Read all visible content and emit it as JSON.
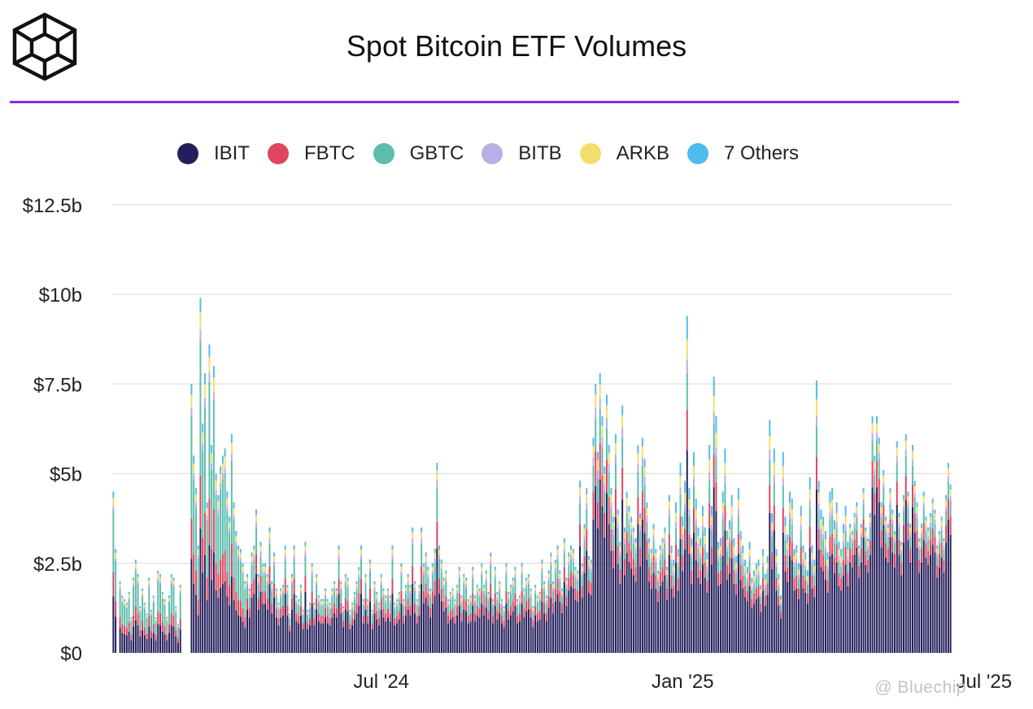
{
  "header": {
    "title": "Spot Bitcoin ETF Volumes",
    "logo_icon": "hexagon-cube-logo-icon",
    "accent_color": "#8a2be2"
  },
  "watermark": {
    "text": "@ Bluechip"
  },
  "chart_data": {
    "type": "bar",
    "stacked": true,
    "title": "Spot Bitcoin ETF Volumes",
    "xlabel": "",
    "ylabel": "",
    "ylim": [
      0,
      12.5
    ],
    "y_unit": "billions USD",
    "y_ticks": [
      0,
      2.5,
      5,
      7.5,
      10,
      12.5
    ],
    "y_tick_labels": [
      "$0",
      "$2.5b",
      "$5b",
      "$7.5b",
      "$10b",
      "$12.5b"
    ],
    "x_tick_labels": [
      "Jul '24",
      "Jan '25",
      "Jul '25"
    ],
    "x_tick_indices": [
      120,
      255,
      390
    ],
    "grid": true,
    "legend_position": "top-center",
    "series_meta": [
      {
        "name": "IBIT",
        "color": "#241f5c"
      },
      {
        "name": "FBTC",
        "color": "#e0445e"
      },
      {
        "name": "GBTC",
        "color": "#5ebdad"
      },
      {
        "name": "BITB",
        "color": "#b9aee6"
      },
      {
        "name": "ARKB",
        "color": "#f4dd6b"
      },
      {
        "name": "7 Others",
        "color": "#4fbcee"
      }
    ],
    "totals": [
      4.5,
      2.9,
      0.0,
      2.0,
      1.6,
      1.5,
      1.4,
      1.7,
      1.0,
      2.1,
      2.6,
      2.2,
      1.3,
      1.8,
      1.4,
      1.1,
      2.1,
      1.2,
      1.6,
      1.0,
      2.3,
      2.2,
      1.7,
      1.5,
      1.0,
      1.6,
      2.2,
      2.1,
      1.3,
      0.8,
      1.9,
      0.0,
      0.0,
      0.0,
      0.0,
      7.5,
      5.5,
      4.6,
      3.0,
      9.9,
      6.4,
      7.8,
      4.2,
      8.6,
      5.8,
      8.0,
      5.0,
      4.4,
      5.2,
      5.5,
      5.7,
      4.5,
      3.8,
      6.1,
      4.2,
      3.4,
      3.0,
      2.9,
      2.5,
      2.0,
      2.2,
      1.8,
      2.8,
      3.0,
      4.0,
      2.2,
      3.1,
      2.5,
      2.5,
      2.2,
      3.5,
      2.0,
      2.8,
      1.8,
      1.4,
      1.8,
      1.9,
      3.0,
      1.9,
      1.1,
      2.2,
      3.0,
      1.6,
      1.5,
      1.9,
      1.2,
      3.1,
      1.2,
      1.4,
      2.5,
      1.4,
      2.2,
      1.6,
      1.5,
      1.5,
      1.8,
      1.5,
      1.4,
      1.8,
      2.0,
      1.8,
      3.0,
      2.0,
      1.3,
      2.2,
      2.1,
      1.2,
      1.4,
      1.7,
      2.0,
      2.4,
      3.0,
      1.5,
      2.2,
      1.5,
      2.6,
      1.2,
      2.0,
      1.7,
      1.4,
      2.2,
      1.8,
      1.6,
      1.8,
      1.6,
      3.0,
      1.4,
      1.5,
      1.7,
      2.5,
      1.5,
      1.9,
      2.2,
      1.9,
      3.5,
      2.0,
      1.5,
      1.9,
      3.5,
      2.5,
      2.8,
      2.4,
      1.8,
      2.5,
      2.9,
      5.3,
      3.0,
      2.6,
      2.1,
      2.3,
      1.5,
      1.7,
      1.8,
      1.5,
      1.9,
      2.4,
      1.6,
      2.2,
      2.1,
      1.5,
      1.6,
      2.4,
      1.6,
      1.9,
      1.8,
      2.5,
      1.9,
      2.3,
      1.7,
      2.8,
      1.5,
      2.4,
      1.7,
      2.0,
      1.5,
      1.3,
      2.5,
      1.7,
      1.9,
      2.1,
      2.4,
      1.5,
      1.6,
      2.5,
      1.8,
      2.1,
      2.2,
      1.8,
      1.3,
      1.9,
      1.6,
      1.7,
      2.6,
      2.0,
      1.6,
      2.3,
      2.8,
      2.0,
      2.6,
      3.0,
      2.3,
      1.8,
      3.2,
      2.1,
      2.8,
      3.0,
      2.9,
      2.4,
      2.3,
      4.8,
      2.5,
      3.6,
      4.6,
      2.7,
      2.6,
      6.0,
      7.5,
      5.6,
      7.8,
      6.6,
      5.2,
      7.2,
      5.8,
      4.6,
      3.8,
      6.1,
      4.0,
      3.1,
      6.9,
      3.5,
      4.5,
      4.1,
      3.8,
      3.5,
      3.2,
      5.8,
      3.9,
      6.0,
      5.4,
      4.2,
      3.2,
      2.9,
      3.6,
      2.9,
      2.3,
      3.0,
      3.2,
      3.5,
      2.4,
      4.4,
      3.0,
      2.6,
      4.2,
      2.9,
      5.3,
      3.8,
      4.8,
      9.4,
      4.6,
      3.2,
      5.6,
      4.3,
      3.5,
      3.2,
      4.1,
      3.5,
      2.8,
      5.8,
      4.1,
      7.7,
      6.6,
      3.1,
      3.2,
      4.5,
      5.7,
      3.4,
      3.7,
      4.4,
      3.2,
      2.7,
      4.6,
      3.4,
      3.0,
      2.6,
      2.4,
      3.1,
      2.1,
      2.3,
      2.5,
      2.6,
      1.9,
      2.9,
      2.2,
      2.7,
      6.5,
      3.9,
      5.7,
      2.9,
      2.2,
      1.6,
      5.6,
      3.8,
      3.3,
      4.5,
      4.3,
      2.9,
      3.0,
      2.5,
      4.1,
      3.0,
      2.8,
      2.3,
      4.9,
      3.0,
      2.6,
      7.6,
      4.8,
      4.0,
      3.8,
      3.4,
      2.8,
      4.5,
      4.6,
      3.7,
      4.2,
      3.1,
      2.9,
      3.6,
      4.1,
      3.1,
      3.6,
      3.4,
      3.9,
      4.2,
      3.0,
      3.6,
      4.6,
      3.5,
      3.2,
      3.9,
      6.6,
      5.5,
      6.6,
      6.0,
      4.2,
      5.1,
      3.8,
      3.6,
      4.6,
      4.0,
      3.4,
      5.9,
      3.9,
      3.1,
      4.4,
      6.1,
      4.5,
      3.6,
      5.8,
      4.8,
      4.2,
      3.2,
      3.6,
      4.5,
      3.8,
      3.5,
      3.9,
      4.3,
      4.0,
      3.0,
      3.4,
      3.8,
      3.2,
      4.4,
      5.3,
      4.7
    ],
    "shares": {
      "IBIT": [
        0.35,
        0.55,
        0.62,
        0.6,
        0.7
      ],
      "FBTC": [
        0.15,
        0.14,
        0.13,
        0.12,
        0.11
      ],
      "GBTC": [
        0.38,
        0.18,
        0.12,
        0.11,
        0.09
      ],
      "BITB": [
        0.03,
        0.04,
        0.04,
        0.04,
        0.03
      ],
      "ARKB": [
        0.05,
        0.05,
        0.05,
        0.06,
        0.04
      ],
      "7 Others": [
        0.04,
        0.04,
        0.04,
        0.07,
        0.03
      ]
    },
    "share_period_starts": [
      0,
      60,
      200,
      250,
      330
    ]
  }
}
